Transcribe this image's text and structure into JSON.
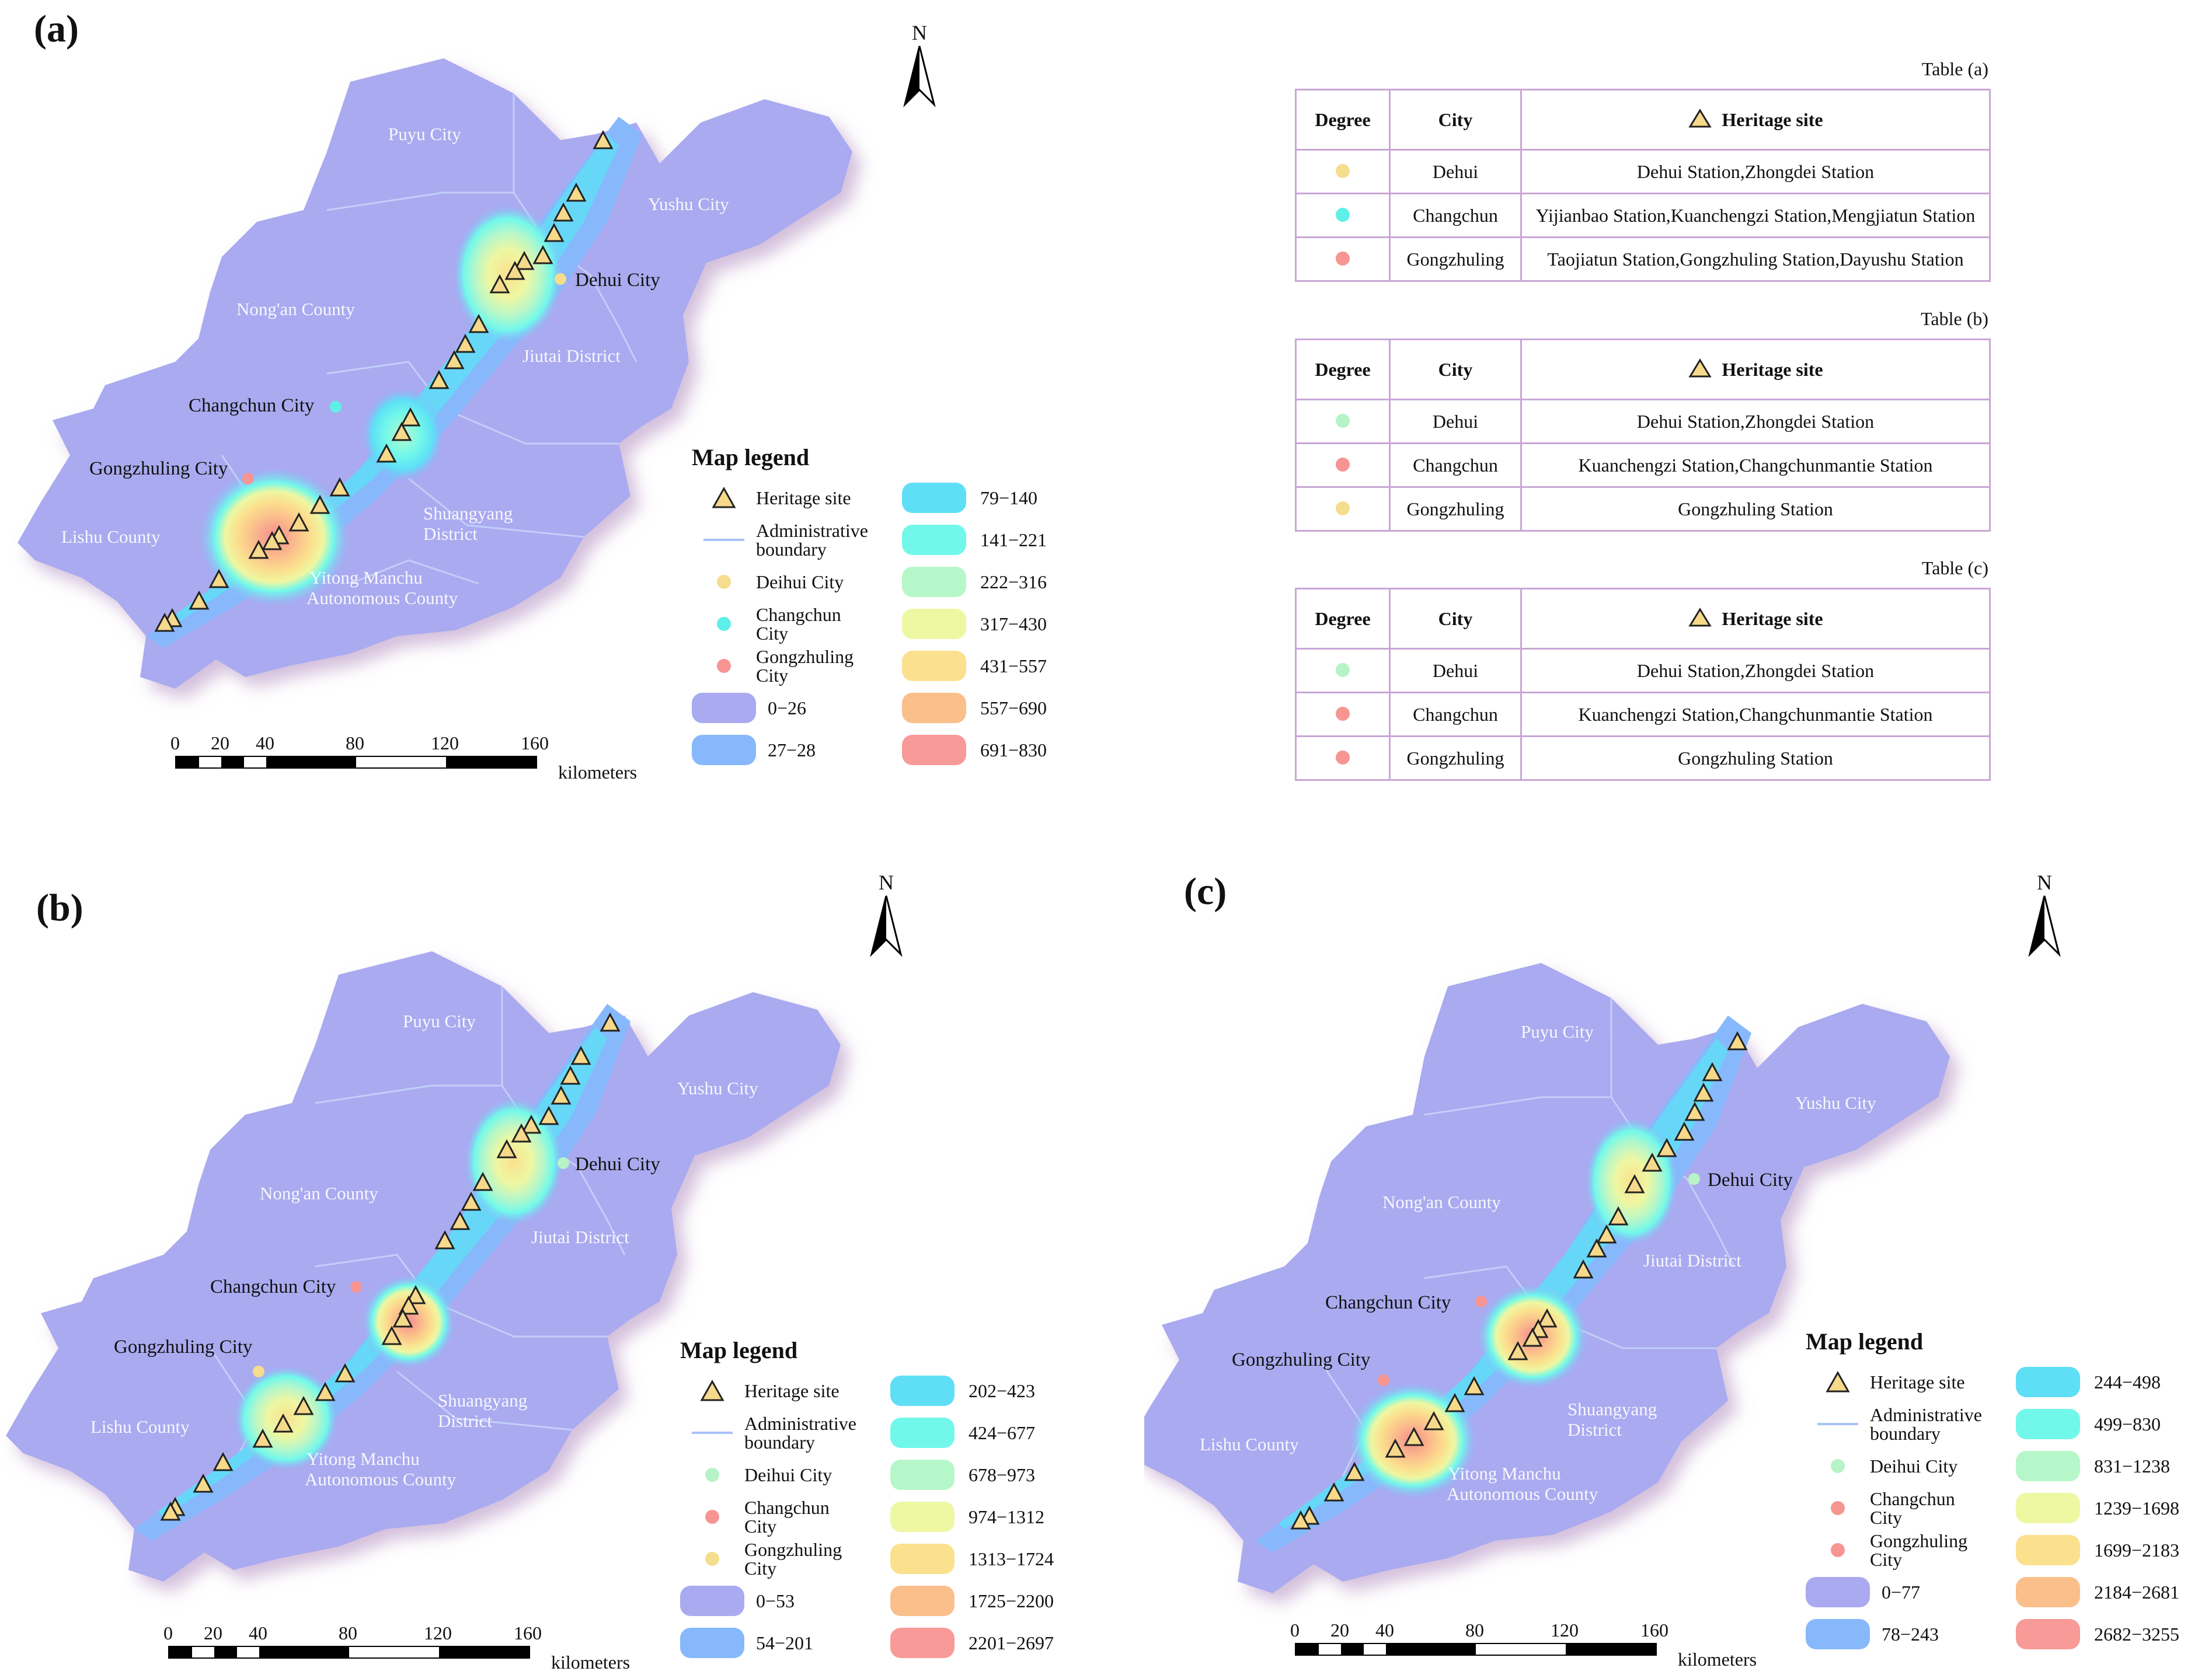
{
  "panels": {
    "a": {
      "label": "(a)"
    },
    "b": {
      "label": "(b)"
    },
    "c": {
      "label": "(c)"
    }
  },
  "north_label": "N",
  "place_names": {
    "puyu": "Puyu City",
    "yushu": "Yushu City",
    "nongan": "Nong'an County",
    "jiutai": "Jiutai District",
    "lishu": "Lishu County",
    "shuangyang_1": "Shuangyang",
    "shuangyang_2": "District",
    "yitong_1": "Yitong Manchu",
    "yitong_2": "Autonomous County"
  },
  "city_labels": {
    "dehui": "Dehui City",
    "changchun": "Changchun City",
    "gongzhuling": "Gongzhuling City"
  },
  "legend": {
    "title": "Map legend",
    "heritage": "Heritage site",
    "boundary_1": "Administrative",
    "boundary_2": "boundary",
    "deihui": "Deihui City",
    "changchun_1": "Changchun",
    "changchun_2": "City",
    "gongzhuling_1": "Gongzhuling",
    "gongzhuling_2": "City"
  },
  "legend_classes": {
    "a": [
      "0−26",
      "27−28",
      "79−140",
      "141−221",
      "222−316",
      "317−430",
      "431−557",
      "557−690",
      "691−830"
    ],
    "b": [
      "0−53",
      "54−201",
      "202−423",
      "424−677",
      "678−973",
      "974−1312",
      "1313−1724",
      "1725−2200",
      "2201−2697"
    ],
    "c": [
      "0−77",
      "78−243",
      "244−498",
      "499−830",
      "831−1238",
      "1239−1698",
      "1699−2183",
      "2184−2681",
      "2682−3255"
    ]
  },
  "class_colors": [
    "#aaaaf0",
    "#87b8fb",
    "#5fdff6",
    "#72f8ea",
    "#b6f7c9",
    "#eef7a2",
    "#fbe08e",
    "#fbbf8c",
    "#f89a97"
  ],
  "city_dot_colors": {
    "a": {
      "dehui": "#f5dd8e",
      "changchun": "#5ef0e8",
      "gongzhuling": "#f69592"
    },
    "b": {
      "dehui": "#b7f3c6",
      "changchun": "#f69592",
      "gongzhuling": "#f5dd8e"
    },
    "c": {
      "dehui": "#b7f3c6",
      "changchun": "#f69592",
      "gongzhuling": "#f69592"
    }
  },
  "scale": {
    "ticks": [
      "0",
      "20",
      "40",
      "80",
      "120",
      "160"
    ],
    "unit": "kilometers"
  },
  "tables": [
    {
      "caption": "Table (a)",
      "headers": [
        "Degree",
        "City",
        "Heritage site"
      ],
      "rows": [
        {
          "dot": "#f5dd8e",
          "city": "Dehui",
          "sites": "Dehui Station,Zhongdei Station"
        },
        {
          "dot": "#5ef0e8",
          "city": "Changchun",
          "sites": "Yijianbao Station,Kuanchengzi Station,Mengjiatun Station"
        },
        {
          "dot": "#f69592",
          "city": "Gongzhuling",
          "sites": "Taojiatun Station,Gongzhuling Station,Dayushu Station"
        }
      ]
    },
    {
      "caption": "Table (b)",
      "headers": [
        "Degree",
        "City",
        "Heritage site"
      ],
      "rows": [
        {
          "dot": "#b7f3c6",
          "city": "Dehui",
          "sites": "Dehui Station,Zhongdei Station"
        },
        {
          "dot": "#f69592",
          "city": "Changchun",
          "sites": "Kuanchengzi Station,Changchunmantie Station"
        },
        {
          "dot": "#f5dd8e",
          "city": "Gongzhuling",
          "sites": "Gongzhuling Station"
        }
      ]
    },
    {
      "caption": "Table (c)",
      "headers": [
        "Degree",
        "City",
        "Heritage site"
      ],
      "rows": [
        {
          "dot": "#b7f3c6",
          "city": "Dehui",
          "sites": "Dehui Station,Zhongdei Station"
        },
        {
          "dot": "#f69592",
          "city": "Changchun",
          "sites": "Kuanchengzi Station,Changchunmantie Station"
        },
        {
          "dot": "#f69592",
          "city": "Gongzhuling",
          "sites": "Gongzhuling Station"
        }
      ]
    }
  ]
}
